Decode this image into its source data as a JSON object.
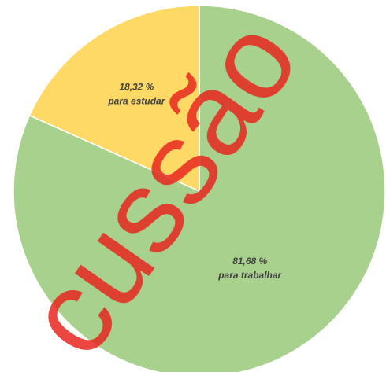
{
  "chart_data": {
    "type": "pie",
    "categories": [
      "para trabalhar",
      "para estudar"
    ],
    "values": [
      81.68,
      18.32
    ],
    "value_labels": [
      "81,68 %",
      "18,32 %"
    ],
    "colors": [
      "#a9d18e",
      "#ffd966"
    ],
    "watermark": "cussão"
  }
}
